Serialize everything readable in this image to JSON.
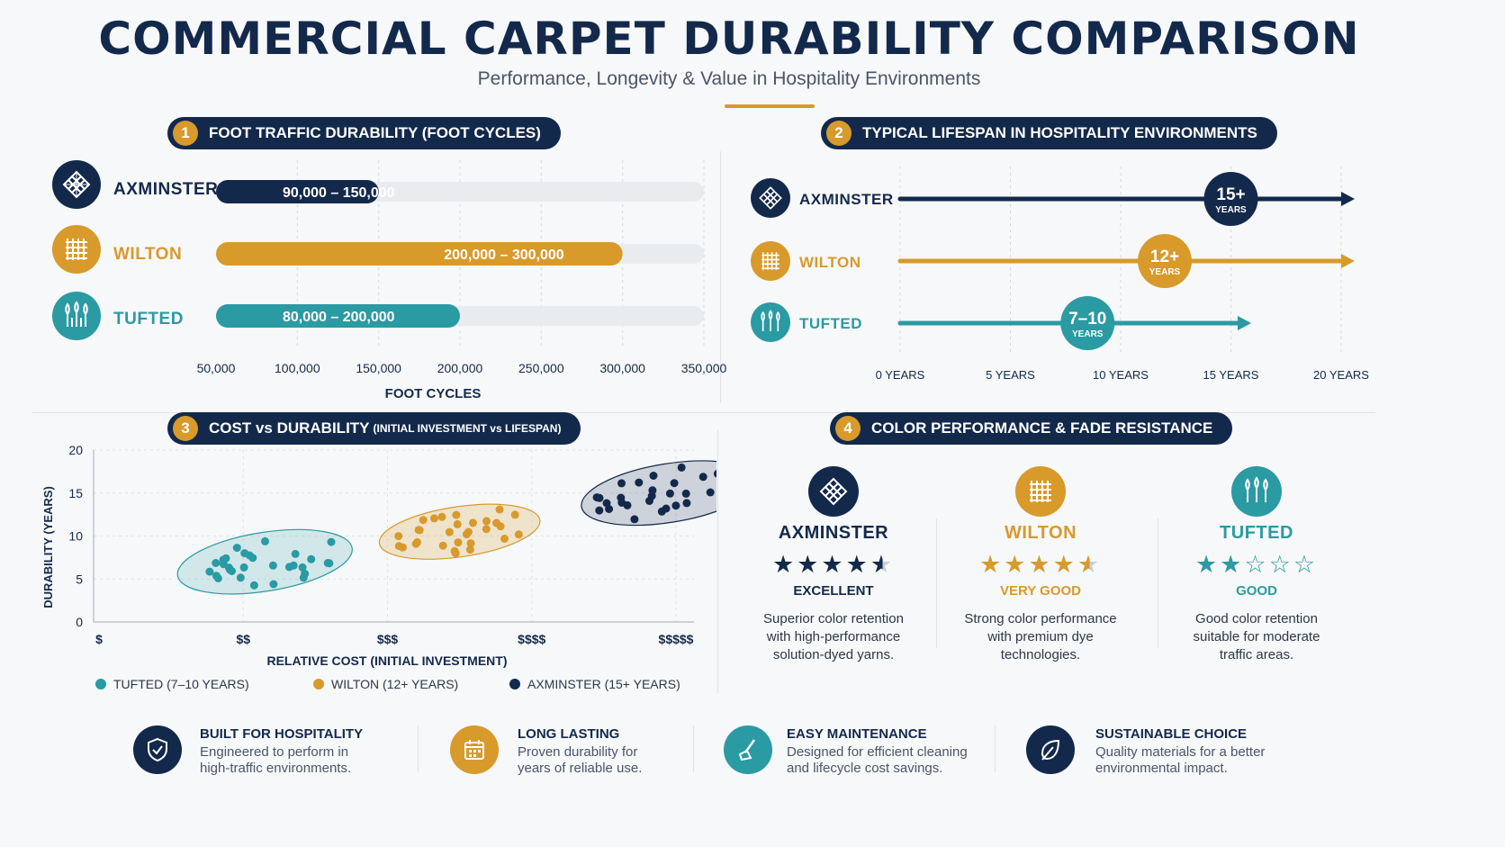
{
  "header": {
    "title": "COMMERCIAL CARPET DURABILITY COMPARISON",
    "subtitle": "Performance, Longevity & Value in Hospitality Environments"
  },
  "colors": {
    "navy": "#13294b",
    "gold": "#d79a2b",
    "teal": "#2a9aa3"
  },
  "sections": {
    "s1": {
      "num": "1",
      "label": "FOOT TRAFFIC DURABILITY (FOOT CYCLES)"
    },
    "s2": {
      "num": "2",
      "label": "TYPICAL LIFESPAN IN HOSPITALITY ENVIRONMENTS"
    },
    "s3": {
      "num": "3",
      "label": "COST vs DURABILITY",
      "small": "(INITIAL INVESTMENT vs LIFESPAN)"
    },
    "s4": {
      "num": "4",
      "label": "COLOR PERFORMANCE & FADE RESISTANCE"
    }
  },
  "carpets": {
    "axminster": {
      "name": "AXMINSTER",
      "icon": "woven-lattice-icon"
    },
    "wilton": {
      "name": "WILTON",
      "icon": "grid-weave-icon"
    },
    "tufted": {
      "name": "TUFTED",
      "icon": "tufted-fibers-icon"
    }
  },
  "chart_data": [
    {
      "type": "bar",
      "orientation": "horizontal",
      "categories": [
        "AXMINSTER",
        "WILTON",
        "TUFTED"
      ],
      "ranges": [
        [
          90000,
          150000
        ],
        [
          200000,
          300000
        ],
        [
          80000,
          200000
        ]
      ],
      "labels": [
        "90,000 – 150,000",
        "200,000 – 300,000",
        "80,000 – 200,000"
      ],
      "xticks": [
        "50,000",
        "100,000",
        "150,000",
        "200,000",
        "250,000",
        "300,000",
        "350,000"
      ],
      "xlim": [
        50000,
        350000
      ],
      "xlabel": "FOOT CYCLES"
    },
    {
      "type": "line",
      "title": "TYPICAL LIFESPAN IN HOSPITALITY ENVIRONMENTS",
      "categories": [
        "AXMINSTER",
        "WILTON",
        "TUFTED"
      ],
      "values": [
        15,
        12,
        8.5
      ],
      "value_labels": [
        "15+",
        "12+",
        "7–10"
      ],
      "unit_label": "YEARS",
      "xticks": [
        "0 YEARS",
        "5 YEARS",
        "10 YEARS",
        "15 YEARS",
        "20 YEARS"
      ],
      "xlim": [
        0,
        20
      ]
    },
    {
      "type": "scatter",
      "xlabel": "RELATIVE COST (INITIAL INVESTMENT)",
      "ylabel": "DURABILITY (YEARS)",
      "xticks": [
        "$",
        "$$",
        "$$$",
        "$$$$",
        "$$$$$"
      ],
      "yticks": [
        "0",
        "5",
        "10",
        "15",
        "20"
      ],
      "ylim": [
        0,
        20
      ],
      "series": [
        {
          "name": "TUFTED (7–10 YEARS)",
          "color": "#2a9aa3",
          "cost_range": [
            1.6,
            2.7
          ],
          "durability_range": [
            4,
            10
          ]
        },
        {
          "name": "WILTON (12+ YEARS)",
          "color": "#d79a2b",
          "cost_range": [
            3.0,
            4.0
          ],
          "durability_range": [
            8,
            13
          ]
        },
        {
          "name": "AXMINSTER (15+ YEARS)",
          "color": "#13294b",
          "cost_range": [
            4.4,
            5.5
          ],
          "durability_range": [
            12,
            18
          ]
        }
      ]
    }
  ],
  "color_performance": [
    {
      "key": "axminster",
      "name": "AXMINSTER",
      "rating": 4.5,
      "label": "EXCELLENT",
      "desc1": "Superior color retention",
      "desc2": "with high-performance",
      "desc3": "solution-dyed yarns.",
      "color": "#13294b"
    },
    {
      "key": "wilton",
      "name": "WILTON",
      "rating": 4.5,
      "label": "VERY GOOD",
      "desc1": "Strong color performance",
      "desc2": "with premium dye",
      "desc3": "technologies.",
      "color": "#d79a2b"
    },
    {
      "key": "tufted",
      "name": "TUFTED",
      "rating": 2,
      "label": "GOOD",
      "desc1": "Good color retention",
      "desc2": "suitable for moderate",
      "desc3": "traffic areas.",
      "color": "#2a9aa3"
    }
  ],
  "features": [
    {
      "title": "BUILT FOR HOSPITALITY",
      "desc1": "Engineered to perform in",
      "desc2": "high-traffic environments.",
      "icon": "shield-check-icon"
    },
    {
      "title": "LONG LASTING",
      "desc1": "Proven durability for",
      "desc2": "years of reliable use.",
      "icon": "calendar-icon"
    },
    {
      "title": "EASY MAINTENANCE",
      "desc1": "Designed for efficient cleaning",
      "desc2": "and lifecycle cost savings.",
      "icon": "vacuum-icon"
    },
    {
      "title": "SUSTAINABLE CHOICE",
      "desc1": "Quality materials for a better",
      "desc2": "environmental impact.",
      "icon": "leaf-icon"
    }
  ]
}
